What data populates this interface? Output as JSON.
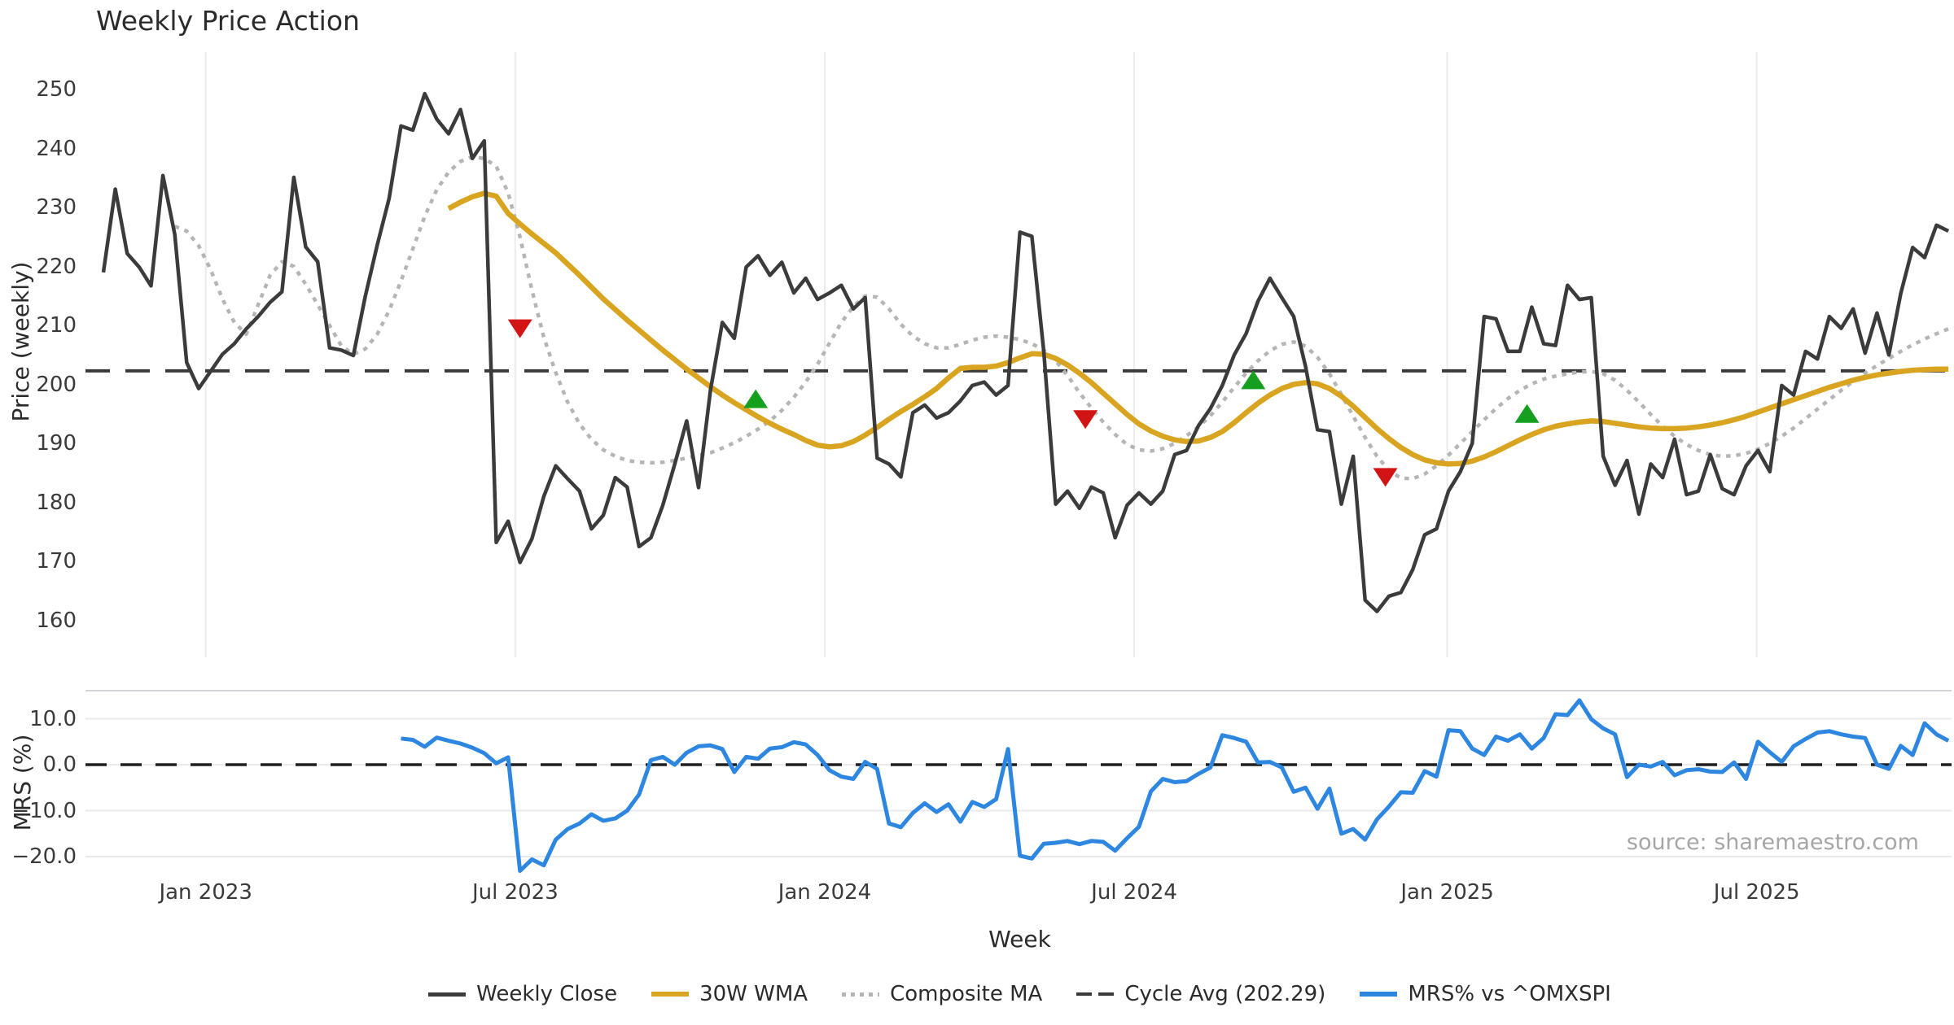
{
  "title": "Weekly Price Action",
  "xlabel": "Week",
  "source": "source: sharemaestro.com",
  "price_panel": {
    "ylabel": "Price (weekly)",
    "ticks": [
      {
        "label": "250",
        "value": 250
      },
      {
        "label": "240",
        "value": 240
      },
      {
        "label": "230",
        "value": 230
      },
      {
        "label": "220",
        "value": 220
      },
      {
        "label": "210",
        "value": 210
      },
      {
        "label": "200",
        "value": 200
      },
      {
        "label": "190",
        "value": 190
      },
      {
        "label": "180",
        "value": 180
      },
      {
        "label": "170",
        "value": 170
      },
      {
        "label": "160",
        "value": 160
      }
    ]
  },
  "mrs_panel": {
    "ylabel": "MRS (%)",
    "ticks": [
      {
        "label": "10.0",
        "value": 10
      },
      {
        "label": "0.0",
        "value": 0
      },
      {
        "label": "−10.0",
        "value": -10
      },
      {
        "label": "−20.0",
        "value": -20
      }
    ]
  },
  "x_ticks": [
    {
      "label": "Jan 2023",
      "week": 8.6
    },
    {
      "label": "Jul 2023",
      "week": 34.6
    },
    {
      "label": "Jan 2024",
      "week": 60.6
    },
    {
      "label": "Jul 2024",
      "week": 86.6
    },
    {
      "label": "Jan 2025",
      "week": 112.9
    },
    {
      "label": "Jul 2025",
      "week": 138.9
    }
  ],
  "legend": {
    "items": [
      {
        "label": "Weekly Close",
        "swatch": "close"
      },
      {
        "label": "30W WMA",
        "swatch": "wma"
      },
      {
        "label": "Composite MA",
        "swatch": "comp"
      },
      {
        "label": "Cycle Avg (202.29)",
        "swatch": "cyc"
      },
      {
        "label": "MRS% vs ^OMXSPI",
        "swatch": "mrs"
      }
    ]
  },
  "chart_data": [
    {
      "type": "line",
      "panel": "price",
      "title": "Weekly Price Action",
      "ylabel": "Price (weekly)",
      "ylim": [
        155,
        256
      ],
      "grid": "vertical-only",
      "cycle_avg": 202.29,
      "series": [
        {
          "name": "Weekly Close",
          "color": "#3b3b3b",
          "style": "solid",
          "width": 4.5,
          "start_week": 0,
          "values": [
            219.0,
            233.1,
            222.2,
            219.9,
            216.7,
            235.4,
            225.4,
            203.7,
            199.3,
            202.2,
            205.1,
            206.9,
            209.4,
            211.5,
            213.9,
            215.7,
            235.1,
            223.3,
            220.8,
            206.2,
            205.8,
            204.9,
            214.9,
            223.6,
            231.5,
            243.8,
            243.1,
            249.3,
            245.0,
            242.5,
            246.6,
            238.3,
            241.3,
            173.2,
            176.8,
            169.8,
            173.8,
            181.0,
            186.2,
            184.0,
            181.9,
            175.5,
            177.8,
            184.2,
            182.6,
            172.5,
            174.0,
            179.5,
            186.5,
            193.8,
            182.5,
            199.0,
            210.5,
            207.8,
            219.9,
            221.8,
            218.5,
            220.7,
            215.5,
            218.0,
            214.4,
            215.5,
            216.8,
            212.8,
            214.7,
            187.5,
            186.5,
            184.3,
            195.2,
            196.5,
            194.3,
            195.2,
            197.2,
            199.8,
            200.4,
            198.2,
            199.8,
            225.8,
            225.1,
            205.6,
            179.7,
            181.9,
            179.0,
            182.6,
            181.6,
            174.0,
            179.5,
            181.6,
            179.7,
            181.9,
            188.1,
            188.8,
            193.0,
            195.9,
            199.8,
            205.0,
            208.6,
            214.1,
            218.0,
            214.7,
            211.5,
            203.0,
            192.3,
            192.0,
            179.7,
            187.8,
            163.4,
            161.5,
            164.1,
            164.7,
            168.6,
            174.5,
            175.5,
            181.9,
            185.2,
            190.0,
            211.5,
            211.1,
            205.6,
            205.6,
            213.1,
            206.9,
            206.6,
            216.8,
            214.4,
            214.7,
            187.8,
            182.9,
            187.1,
            178.0,
            186.5,
            184.2,
            190.7,
            181.3,
            181.9,
            188.1,
            182.3,
            181.3,
            186.2,
            188.8,
            185.2,
            199.8,
            198.2,
            205.6,
            204.3,
            211.5,
            209.5,
            212.8,
            205.3,
            212.1,
            205.0,
            215.4,
            223.2,
            221.5,
            227.0,
            226.0
          ]
        },
        {
          "name": "30W WMA",
          "color": "#d9a521",
          "style": "solid",
          "width": 6.5,
          "start_week": 29,
          "values": [
            229.8,
            230.9,
            231.8,
            232.4,
            231.9,
            229.0,
            227.2,
            225.5,
            223.9,
            222.3,
            220.4,
            218.5,
            216.5,
            214.5,
            212.7,
            210.9,
            209.2,
            207.5,
            205.8,
            204.2,
            202.6,
            201.1,
            199.6,
            198.2,
            196.9,
            195.7,
            194.5,
            193.4,
            192.4,
            191.5,
            190.5,
            189.7,
            189.4,
            189.6,
            190.3,
            191.4,
            192.7,
            194.1,
            195.4,
            196.6,
            197.9,
            199.3,
            201.1,
            202.7,
            202.9,
            202.9,
            203.1,
            203.7,
            204.5,
            205.2,
            205.1,
            204.4,
            203.3,
            201.9,
            200.3,
            198.5,
            196.7,
            194.9,
            193.3,
            192.1,
            191.2,
            190.6,
            190.3,
            190.4,
            191.0,
            192.0,
            193.5,
            195.2,
            196.8,
            198.2,
            199.3,
            200.0,
            200.3,
            200.1,
            199.3,
            198.0,
            196.3,
            194.4,
            192.5,
            190.8,
            189.3,
            188.1,
            187.2,
            186.7,
            186.5,
            186.6,
            187.0,
            187.7,
            188.6,
            189.6,
            190.6,
            191.5,
            192.3,
            192.9,
            193.3,
            193.6,
            193.8,
            193.7,
            193.4,
            193.1,
            192.8,
            192.6,
            192.5,
            192.5,
            192.6,
            192.8,
            193.1,
            193.5,
            194.0,
            194.6,
            195.3,
            196.0,
            196.7,
            197.4,
            198.1,
            198.8,
            199.5,
            200.1,
            200.7,
            201.2,
            201.6,
            201.9,
            202.2,
            202.4,
            202.5,
            202.6,
            202.6
          ]
        },
        {
          "name": "Composite MA",
          "color": "#b5b5b5",
          "style": "dotted",
          "width": 4.5,
          "start_week": 6,
          "values": [
            226.8,
            226.0,
            223.5,
            219.5,
            214.5,
            210.5,
            208.5,
            213.5,
            218.5,
            220.8,
            220.0,
            217.0,
            213.5,
            210.0,
            206.5,
            205.1,
            206.0,
            208.5,
            212.5,
            217.5,
            223.0,
            228.5,
            233.0,
            236.0,
            237.8,
            238.6,
            238.3,
            237.0,
            232.5,
            225.0,
            216.0,
            208.0,
            202.0,
            197.0,
            193.3,
            190.7,
            188.9,
            187.8,
            187.1,
            186.8,
            186.7,
            186.8,
            187.1,
            187.5,
            188.0,
            188.4,
            189.2,
            190.1,
            191.2,
            192.4,
            193.8,
            195.6,
            197.8,
            200.4,
            203.4,
            207.0,
            210.5,
            213.2,
            215.0,
            214.8,
            212.8,
            210.2,
            208.2,
            206.9,
            206.2,
            206.2,
            206.8,
            207.5,
            208.0,
            208.2,
            208.0,
            207.6,
            206.9,
            205.8,
            204.0,
            201.5,
            198.6,
            196.0,
            193.6,
            191.5,
            189.8,
            188.9,
            188.7,
            189.1,
            190.0,
            191.3,
            192.8,
            194.7,
            197.0,
            199.5,
            201.9,
            204.0,
            205.7,
            206.8,
            207.2,
            206.5,
            204.6,
            201.8,
            198.3,
            194.6,
            191.0,
            187.8,
            185.4,
            184.1,
            184.0,
            184.8,
            186.2,
            188.0,
            190.0,
            192.0,
            194.0,
            195.9,
            197.6,
            199.0,
            200.1,
            200.9,
            201.4,
            201.8,
            202.1,
            202.2,
            201.8,
            200.7,
            199.0,
            197.0,
            194.9,
            192.9,
            191.2,
            189.8,
            188.8,
            188.1,
            187.8,
            187.9,
            188.3,
            189.0,
            190.0,
            191.2,
            192.6,
            194.2,
            195.8,
            197.4,
            199.0,
            200.5,
            201.9,
            203.2,
            204.4,
            205.6,
            206.7,
            207.7,
            208.6,
            209.4
          ]
        },
        {
          "name": "Cycle Avg (202.29)",
          "color": "#3a3a3a",
          "style": "dashed",
          "width": 4,
          "constant": 202.29
        }
      ],
      "markers": {
        "sell": {
          "color": "#d21414",
          "shape": "triangle-down",
          "points": [
            {
              "week": 35.0,
              "price": 209.5
            },
            {
              "week": 82.5,
              "price": 194.1
            },
            {
              "week": 107.7,
              "price": 184.3
            }
          ]
        },
        "buy": {
          "color": "#14a01e",
          "shape": "triangle-up",
          "points": [
            {
              "week": 54.8,
              "price": 197.5
            },
            {
              "week": 96.6,
              "price": 200.7
            },
            {
              "week": 119.6,
              "price": 195.0
            }
          ]
        }
      }
    },
    {
      "type": "line",
      "panel": "mrs",
      "ylabel": "MRS (%)",
      "ylim": [
        -25,
        16
      ],
      "zero_line": true,
      "grid": "horizontal-only",
      "series": [
        {
          "name": "MRS% vs ^OMXSPI",
          "color": "#2d86e0",
          "style": "solid",
          "width": 5,
          "start_week": 25,
          "values": [
            5.7,
            5.4,
            3.9,
            5.9,
            5.2,
            4.6,
            3.7,
            2.5,
            0.3,
            1.6,
            -23.1,
            -20.6,
            -21.9,
            -16.3,
            -14.0,
            -12.8,
            -10.8,
            -12.2,
            -11.7,
            -10.0,
            -6.5,
            1.0,
            1.7,
            0.0,
            2.6,
            4.0,
            4.2,
            3.4,
            -1.6,
            1.7,
            1.3,
            3.5,
            3.8,
            4.9,
            4.4,
            2.1,
            -1.2,
            -2.6,
            -3.1,
            0.6,
            -0.9,
            -12.8,
            -13.6,
            -10.5,
            -8.4,
            -10.3,
            -8.6,
            -12.4,
            -8.1,
            -9.2,
            -7.5,
            3.4,
            -19.8,
            -20.4,
            -17.2,
            -17.0,
            -16.6,
            -17.3,
            -16.6,
            -16.8,
            -18.7,
            -16.0,
            -13.5,
            -5.8,
            -3.1,
            -3.8,
            -3.6,
            -2.0,
            -0.6,
            6.4,
            5.8,
            5.0,
            0.5,
            0.6,
            -0.6,
            -5.9,
            -5.0,
            -9.6,
            -5.2,
            -15.0,
            -14.0,
            -16.3,
            -11.9,
            -9.1,
            -6.0,
            -6.1,
            -1.4,
            -2.6,
            7.5,
            7.3,
            3.5,
            2.1,
            6.1,
            5.2,
            6.6,
            3.5,
            5.8,
            11.0,
            10.8,
            14.0,
            9.9,
            7.9,
            6.6,
            -2.7,
            0.0,
            -0.4,
            0.6,
            -2.3,
            -1.2,
            -1.0,
            -1.5,
            -1.6,
            0.5,
            -3.1,
            5.0,
            2.7,
            0.6,
            4.0,
            5.6,
            7.0,
            7.3,
            6.6,
            6.1,
            5.8,
            0.0,
            -0.9,
            4.1,
            2.1,
            9.0,
            6.6,
            5.2
          ]
        }
      ]
    }
  ]
}
